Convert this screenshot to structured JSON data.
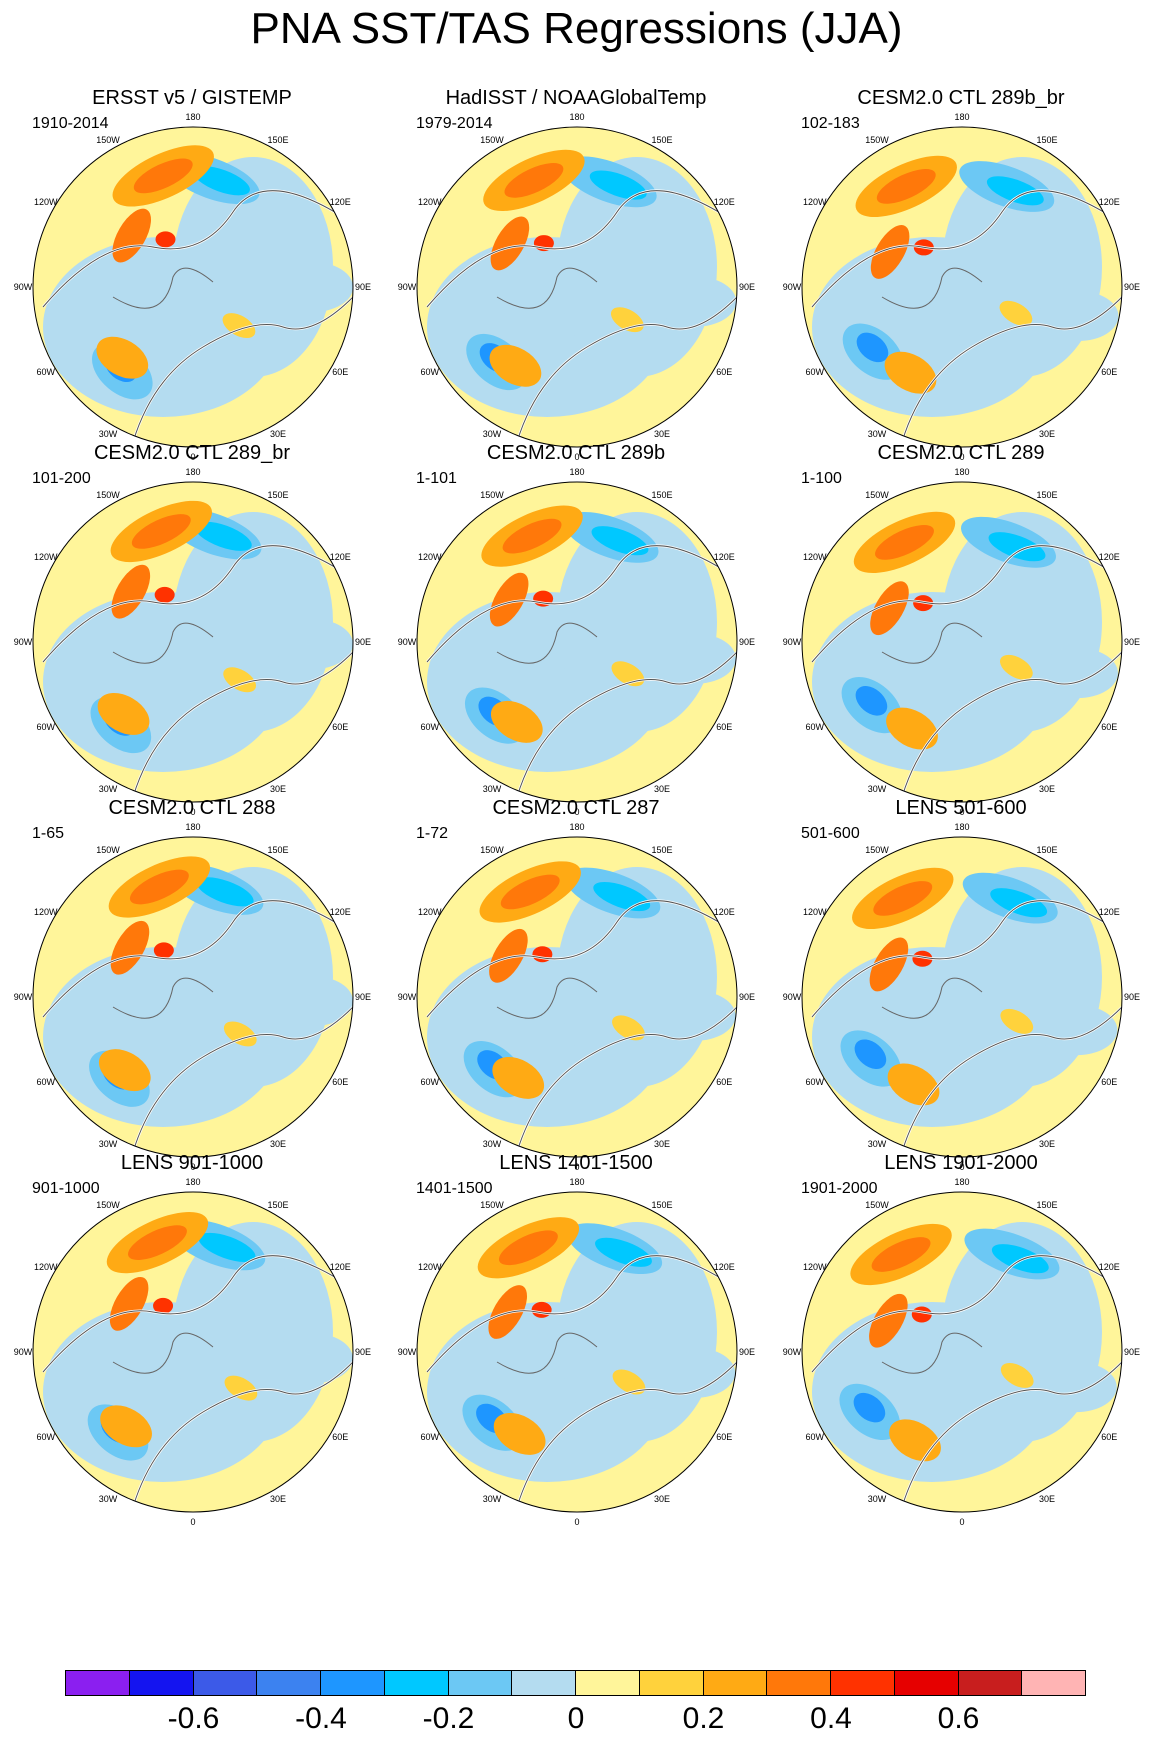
{
  "title": "PNA SST/TAS Regressions (JJA)",
  "longitude_labels": [
    "180",
    "150E",
    "120E",
    "90E",
    "60E",
    "30E",
    "0",
    "30W",
    "60W",
    "90W",
    "120W",
    "150W"
  ],
  "panels": [
    {
      "title": "ERSST v5 / GISTEMP",
      "period": "1910-2014"
    },
    {
      "title": "HadISST / NOAAGlobalTemp",
      "period": "1979-2014"
    },
    {
      "title": "CESM2.0 CTL 289b_br",
      "period": "102-183"
    },
    {
      "title": "CESM2.0 CTL 289_br",
      "period": "101-200"
    },
    {
      "title": "CESM2.0 CTL 289b",
      "period": "1-101"
    },
    {
      "title": "CESM2.0 CTL 289",
      "period": "1-100"
    },
    {
      "title": "CESM2.0 CTL 288",
      "period": "1-65"
    },
    {
      "title": "CESM2.0 CTL 287",
      "period": "1-72"
    },
    {
      "title": "LENS 501-600",
      "period": "501-600"
    },
    {
      "title": "LENS 901-1000",
      "period": "901-1000"
    },
    {
      "title": "LENS 1401-1500",
      "period": "1401-1500"
    },
    {
      "title": "LENS 1901-2000",
      "period": "1901-2000"
    }
  ],
  "colorbar": {
    "colors": [
      "#8b1ff0",
      "#1414f0",
      "#3c5ae8",
      "#3c82f0",
      "#1e96ff",
      "#00c8ff",
      "#6cc8f4",
      "#b4dcf0",
      "#fff59a",
      "#ffd23c",
      "#ffaa14",
      "#ff780a",
      "#ff3200",
      "#e60000",
      "#c81e1e",
      "#ffb4b4"
    ],
    "tick_labels": [
      "-0.6",
      "-0.4",
      "-0.2",
      "0",
      "0.2",
      "0.4",
      "0.6"
    ]
  },
  "chart_data": {
    "type": "polar-stereographic contour maps",
    "title": "PNA SST/TAS Regressions (JJA)",
    "variable": "SST/TAS regression on PNA index",
    "color_levels": [
      -0.7,
      -0.6,
      -0.5,
      -0.4,
      -0.3,
      -0.2,
      -0.1,
      0,
      0.1,
      0.2,
      0.3,
      0.4,
      0.5,
      0.6,
      0.7
    ],
    "colorbar_ticks": [
      -0.6,
      -0.4,
      -0.2,
      0,
      0.2,
      0.4,
      0.6
    ],
    "map_projection": "north polar stereographic",
    "panel_count": 12
  }
}
